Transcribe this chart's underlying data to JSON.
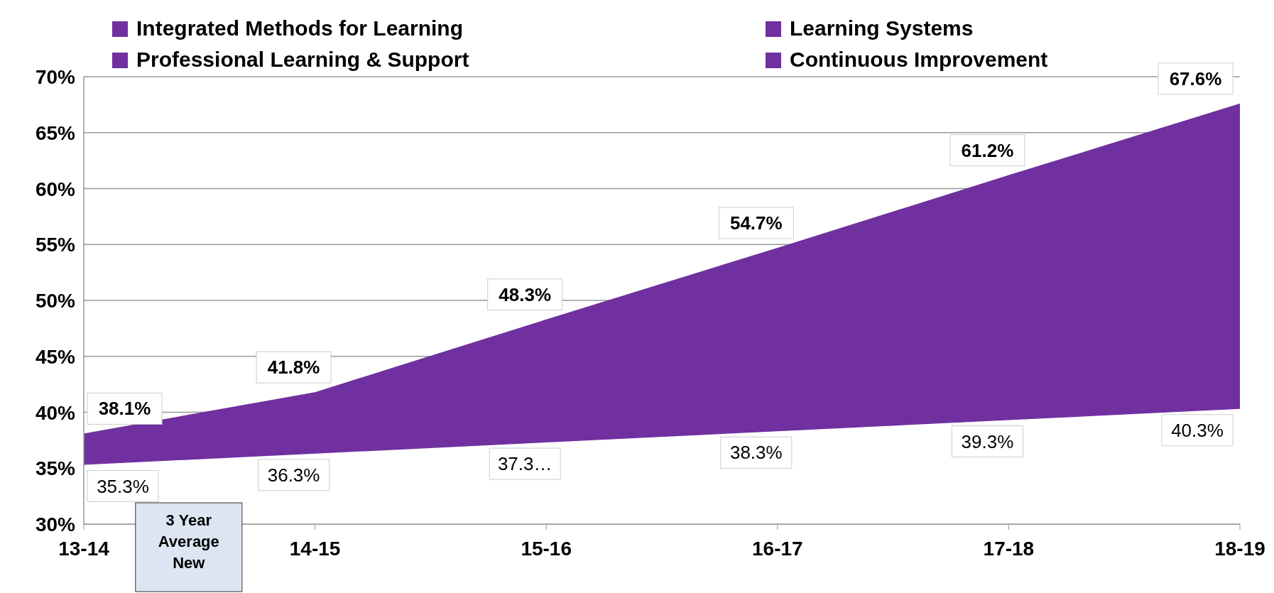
{
  "chart_data": {
    "type": "area",
    "categories": [
      "13-14",
      "14-15",
      "15-16",
      "16-17",
      "17-18",
      "18-19"
    ],
    "series": [
      {
        "color": "#7030a0",
        "values": [
          38.1,
          41.8,
          48.3,
          54.7,
          61.2,
          67.6
        ],
        "value_labels": [
          "38.1%",
          "41.8%",
          "48.3%",
          "54.7%",
          "61.2%",
          "67.6%"
        ]
      },
      {
        "color": "#ffffff",
        "values": [
          35.3,
          36.3,
          37.3,
          38.3,
          39.3,
          40.3
        ],
        "value_labels": [
          "35.3%",
          "36.3%",
          "37.3…",
          "38.3%",
          "39.3%",
          "40.3%"
        ]
      },
      {
        "name": "Integrated Methods for Learning",
        "color": "#7030a0",
        "values": [
          null,
          null,
          null,
          null,
          null,
          null
        ]
      },
      {
        "name": "Learning Systems",
        "color": "#7030a0",
        "values": [
          null,
          null,
          null,
          null,
          null,
          null
        ]
      },
      {
        "name": "Professional Learning & Support",
        "color": "#7030a0",
        "values": [
          null,
          null,
          null,
          null,
          null,
          null
        ]
      },
      {
        "name": "Continuous Improvement",
        "color": "#7030a0",
        "values": [
          null,
          null,
          null,
          null,
          null,
          null
        ]
      }
    ],
    "ylim": [
      30,
      70
    ],
    "yticks": [
      {
        "value": 30,
        "label": "30%"
      },
      {
        "value": 35,
        "label": "35%"
      },
      {
        "value": 40,
        "label": "40%"
      },
      {
        "value": 45,
        "label": "45%"
      },
      {
        "value": 50,
        "label": "50%"
      },
      {
        "value": 55,
        "label": "55%"
      },
      {
        "value": 60,
        "label": "60%"
      },
      {
        "value": 65,
        "label": "65%"
      },
      {
        "value": 70,
        "label": "70%"
      }
    ],
    "grid": "y",
    "legend": "top",
    "annotations": [
      "3 Year Average New"
    ]
  }
}
